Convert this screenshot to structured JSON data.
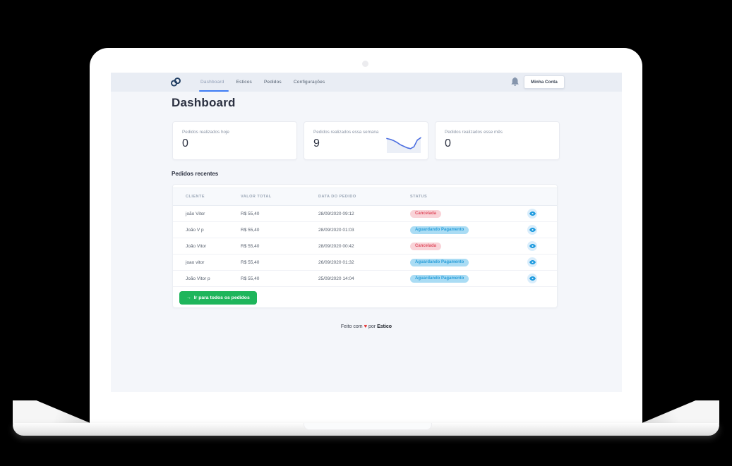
{
  "nav": {
    "tabs": [
      {
        "label": "Dashboard",
        "active": true
      },
      {
        "label": "Esticos",
        "active": false
      },
      {
        "label": "Pedidos",
        "active": false
      },
      {
        "label": "Configurações",
        "active": false
      }
    ],
    "account_button": "Minha Conta"
  },
  "page": {
    "title": "Dashboard"
  },
  "stats": [
    {
      "label": "Pedidos realizados hoje",
      "value": "0"
    },
    {
      "label": "Pedidos realizados essa semana",
      "value": "9",
      "sparkline": {
        "type": "line",
        "points": [
          7.5,
          7,
          6.2,
          5,
          3.5,
          2.5,
          1.5,
          1,
          2.2,
          6.5,
          8
        ],
        "line_color": "#4a6de0",
        "fill_color": "#e3e8f3"
      }
    },
    {
      "label": "Pedidos realizados esse mês",
      "value": "0"
    }
  ],
  "recent_orders": {
    "title": "Pedidos recentes",
    "columns": [
      "Cliente",
      "Valor Total",
      "Data do Pedido",
      "Status"
    ],
    "rows": [
      {
        "cliente": "joão Vitor",
        "valor_total": "R$ 55,40",
        "data_pedido": "28/09/2020 09:12",
        "status": "Cancelada",
        "status_type": "cancelled"
      },
      {
        "cliente": "João V p",
        "valor_total": "R$ 55,40",
        "data_pedido": "28/09/2020 01:03",
        "status": "Aguardando Pagamento",
        "status_type": "pending"
      },
      {
        "cliente": "João Vitor",
        "valor_total": "R$ 55,40",
        "data_pedido": "28/09/2020 00:42",
        "status": "Cancelada",
        "status_type": "cancelled"
      },
      {
        "cliente": "joao vitor",
        "valor_total": "R$ 55,40",
        "data_pedido": "26/09/2020 01:32",
        "status": "Aguardando Pagamento",
        "status_type": "pending"
      },
      {
        "cliente": "João Vitor p",
        "valor_total": "R$ 55,40",
        "data_pedido": "25/09/2020 14:04",
        "status": "Aguardando Pagamento",
        "status_type": "pending"
      }
    ],
    "view_all_arrow": "→",
    "view_all_label": "Ir para todos os pedidos"
  },
  "footer": {
    "text_before": "Feito com",
    "heart": "♥",
    "text_middle": "por",
    "brand": "Estico"
  },
  "colors": {
    "nav_bg": "#e9edf4",
    "tab_underline": "#3d7bf5",
    "badge_cancelled_bg": "#f9d3d8",
    "badge_cancelled_text": "#e05263",
    "badge_pending_bg": "#aadcf4",
    "badge_pending_text": "#2b9fd9",
    "eye_icon": "#1d9ade",
    "button_green": "#1eb55b",
    "heart_red": "#e42b2b"
  }
}
